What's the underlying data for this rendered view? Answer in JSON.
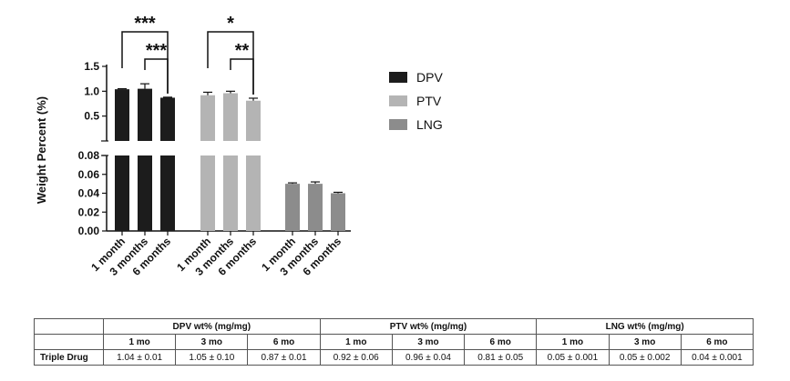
{
  "chart_data": {
    "type": "bar",
    "ylabel": "Weight Percent (%)",
    "groups": [
      {
        "name": "DPV",
        "color": "#1c1c1c",
        "categories": [
          "1 month",
          "3 months",
          "6 months"
        ],
        "values": [
          1.04,
          1.05,
          0.87
        ],
        "errors": [
          0.01,
          0.1,
          0.01
        ]
      },
      {
        "name": "PTV",
        "color": "#b4b4b4",
        "categories": [
          "1 month",
          "3 months",
          "6 months"
        ],
        "values": [
          0.92,
          0.96,
          0.81
        ],
        "errors": [
          0.06,
          0.04,
          0.05
        ]
      },
      {
        "name": "LNG",
        "color": "#8c8c8c",
        "categories": [
          "1 month",
          "3 months",
          "6 months"
        ],
        "values": [
          0.05,
          0.05,
          0.04
        ],
        "errors": [
          0.001,
          0.002,
          0.001
        ]
      }
    ],
    "upper_axis": {
      "ylim": [
        0.0,
        1.5
      ],
      "ticks": [
        "1.5",
        "1.0",
        "0.5"
      ],
      "tick_values": [
        1.5,
        1.0,
        0.5
      ]
    },
    "lower_axis": {
      "ylim": [
        0.0,
        0.08
      ],
      "ticks": [
        "0.08",
        "0.06",
        "0.04",
        "0.02",
        "0.00"
      ],
      "tick_values": [
        0.08,
        0.06,
        0.04,
        0.02,
        0.0
      ]
    },
    "significance": [
      {
        "group": "DPV",
        "from": 0,
        "to": 2,
        "label": "***"
      },
      {
        "group": "DPV",
        "from": 1,
        "to": 2,
        "label": "***"
      },
      {
        "group": "PTV",
        "from": 0,
        "to": 2,
        "label": "*"
      },
      {
        "group": "PTV",
        "from": 1,
        "to": 2,
        "label": "**"
      }
    ],
    "legend": [
      "DPV",
      "PTV",
      "LNG"
    ]
  },
  "table": {
    "groups": [
      "DPV wt% (mg/mg)",
      "PTV wt% (mg/mg)",
      "LNG wt% (mg/mg)"
    ],
    "subheaders": [
      "1 mo",
      "3 mo",
      "6 mo",
      "1 mo",
      "3 mo",
      "6 mo",
      "1 mo",
      "3 mo",
      "6 mo"
    ],
    "row_label": "Triple Drug",
    "cells": [
      "1.04 ± 0.01",
      "1.05 ± 0.10",
      "0.87 ± 0.01",
      "0.92 ± 0.06",
      "0.96 ± 0.04",
      "0.81 ± 0.05",
      "0.05 ± 0.001",
      "0.05 ± 0.002",
      "0.04 ± 0.001"
    ]
  }
}
